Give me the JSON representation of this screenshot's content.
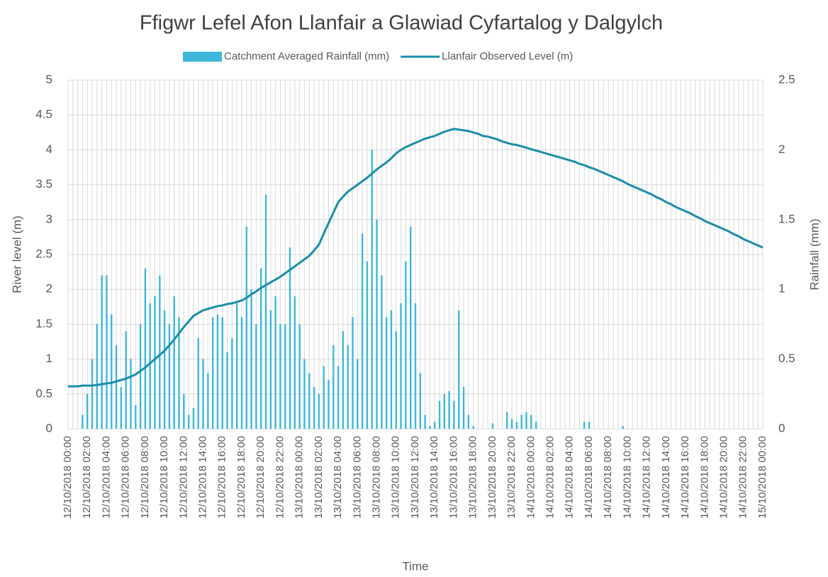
{
  "chart_data": {
    "type": "bar_line",
    "title": "Ffigwr Lefel Afon Llanfair a Glawiad Cyfartalog y Dalgylch",
    "x_label": "Time",
    "y_label": "River level (m)",
    "y2_label": "Rainfall (mm)",
    "legend": "top",
    "grid": true,
    "ylim": [
      0,
      5
    ],
    "yticks": [
      0,
      0.5,
      1,
      1.5,
      2,
      2.5,
      3,
      3.5,
      4,
      4.5,
      5
    ],
    "y2lim": [
      0,
      2.5
    ],
    "y2ticks": [
      0,
      0.5,
      1,
      1.5,
      2,
      2.5
    ],
    "categories": [
      "12/10/2018 00:00",
      null,
      null,
      null,
      "12/10/2018 02:00",
      null,
      null,
      null,
      "12/10/2018 04:00",
      null,
      null,
      null,
      "12/10/2018 06:00",
      null,
      null,
      null,
      "12/10/2018 08:00",
      null,
      null,
      null,
      "12/10/2018 10:00",
      null,
      null,
      null,
      "12/10/2018 12:00",
      null,
      null,
      null,
      "12/10/2018 14:00",
      null,
      null,
      null,
      "12/10/2018 16:00",
      null,
      null,
      null,
      "12/10/2018 18:00",
      null,
      null,
      null,
      "12/10/2018 20:00",
      null,
      null,
      null,
      "12/10/2018 22:00",
      null,
      null,
      null,
      "13/10/2018 00:00",
      null,
      null,
      null,
      "13/10/2018 02:00",
      null,
      null,
      null,
      "13/10/2018 04:00",
      null,
      null,
      null,
      "13/10/2018 06:00",
      null,
      null,
      null,
      "13/10/2018 08:00",
      null,
      null,
      null,
      "13/10/2018 10:00",
      null,
      null,
      null,
      "13/10/2018 12:00",
      null,
      null,
      null,
      "13/10/2018 14:00",
      null,
      null,
      null,
      "13/10/2018 16:00",
      null,
      null,
      null,
      "13/10/2018 18:00",
      null,
      null,
      null,
      "13/10/2018 20:00",
      null,
      null,
      null,
      "13/10/2018 22:00",
      null,
      null,
      null,
      "14/10/2018 00:00",
      null,
      null,
      null,
      "14/10/2018 02:00",
      null,
      null,
      null,
      "14/10/2018 04:00",
      null,
      null,
      null,
      "14/10/2018 06:00",
      null,
      null,
      null,
      "14/10/2018 08:00",
      null,
      null,
      null,
      "14/10/2018 10:00",
      null,
      null,
      null,
      "14/10/2018 12:00",
      null,
      null,
      null,
      "14/10/2018 14:00",
      null,
      null,
      null,
      "14/10/2018 16:00",
      null,
      null,
      null,
      "14/10/2018 18:00",
      null,
      null,
      null,
      "14/10/2018 20:00",
      null,
      null,
      null,
      "14/10/2018 22:00",
      null,
      null,
      null,
      "15/10/2018 00:00"
    ],
    "series": [
      {
        "name": "Catchment Averaged Rainfall (mm)",
        "color": "#3db7da",
        "kind": "bar",
        "axis": "y2",
        "values": [
          0,
          0,
          0,
          0.1,
          0.25,
          0.5,
          0.75,
          1.1,
          1.1,
          0.82,
          0.6,
          0.3,
          0.7,
          0.5,
          0.17,
          0.75,
          1.15,
          0.9,
          0.95,
          1.1,
          0.85,
          0.75,
          0.95,
          0.8,
          0.25,
          0.1,
          0.15,
          0.65,
          0.5,
          0.4,
          0.8,
          0.82,
          0.8,
          0.55,
          0.65,
          0.9,
          0.8,
          1.45,
          1.0,
          0.75,
          1.15,
          1.68,
          0.85,
          0.95,
          0.75,
          0.75,
          1.3,
          0.95,
          0.75,
          0.5,
          0.4,
          0.3,
          0.25,
          0.45,
          0.35,
          0.6,
          0.45,
          0.7,
          0.6,
          0.8,
          0.5,
          1.4,
          1.2,
          2.0,
          1.5,
          1.1,
          0.8,
          0.85,
          0.7,
          0.9,
          1.2,
          1.45,
          0.9,
          0.4,
          0.1,
          0.02,
          0.05,
          0.2,
          0.25,
          0.27,
          0.2,
          0.85,
          0.3,
          0.1,
          0.02,
          0,
          0,
          0,
          0.04,
          0,
          0,
          0.12,
          0.07,
          0.05,
          0.1,
          0.12,
          0.1,
          0.05,
          0,
          0,
          0,
          0,
          0,
          0,
          0,
          0,
          0,
          0.05,
          0.05,
          0,
          0,
          0,
          0,
          0,
          0,
          0.02,
          0,
          0,
          0,
          0,
          0,
          0,
          0,
          0,
          0,
          0,
          0,
          0,
          0,
          0,
          0,
          0,
          0,
          0,
          0,
          0,
          0,
          0,
          0,
          0,
          0,
          0,
          0,
          0,
          0
        ]
      },
      {
        "name": "Llanfair Observed Level (m)",
        "color": "#1b8ea8",
        "kind": "line",
        "axis": "y",
        "values": [
          0.61,
          0.61,
          0.61,
          0.62,
          0.62,
          0.62,
          0.63,
          0.64,
          0.65,
          0.66,
          0.68,
          0.7,
          0.72,
          0.75,
          0.78,
          0.83,
          0.88,
          0.94,
          1.0,
          1.06,
          1.12,
          1.2,
          1.28,
          1.37,
          1.46,
          1.54,
          1.62,
          1.66,
          1.7,
          1.72,
          1.74,
          1.76,
          1.77,
          1.79,
          1.8,
          1.82,
          1.84,
          1.88,
          1.93,
          1.97,
          2.02,
          2.06,
          2.1,
          2.14,
          2.18,
          2.23,
          2.28,
          2.33,
          2.38,
          2.43,
          2.48,
          2.56,
          2.64,
          2.8,
          2.95,
          3.1,
          3.25,
          3.33,
          3.4,
          3.45,
          3.5,
          3.55,
          3.6,
          3.66,
          3.72,
          3.77,
          3.82,
          3.88,
          3.95,
          4.0,
          4.04,
          4.07,
          4.1,
          4.13,
          4.16,
          4.18,
          4.2,
          4.23,
          4.26,
          4.28,
          4.3,
          4.29,
          4.28,
          4.27,
          4.25,
          4.23,
          4.2,
          4.19,
          4.17,
          4.15,
          4.12,
          4.1,
          4.08,
          4.07,
          4.05,
          4.03,
          4.01,
          3.99,
          3.97,
          3.95,
          3.93,
          3.91,
          3.89,
          3.87,
          3.85,
          3.83,
          3.8,
          3.78,
          3.75,
          3.73,
          3.7,
          3.67,
          3.64,
          3.61,
          3.58,
          3.55,
          3.51,
          3.48,
          3.45,
          3.42,
          3.39,
          3.36,
          3.32,
          3.29,
          3.25,
          3.22,
          3.18,
          3.15,
          3.12,
          3.09,
          3.05,
          3.02,
          2.98,
          2.95,
          2.92,
          2.89,
          2.86,
          2.83,
          2.79,
          2.76,
          2.72,
          2.69,
          2.66,
          2.63,
          2.6
        ]
      }
    ]
  }
}
